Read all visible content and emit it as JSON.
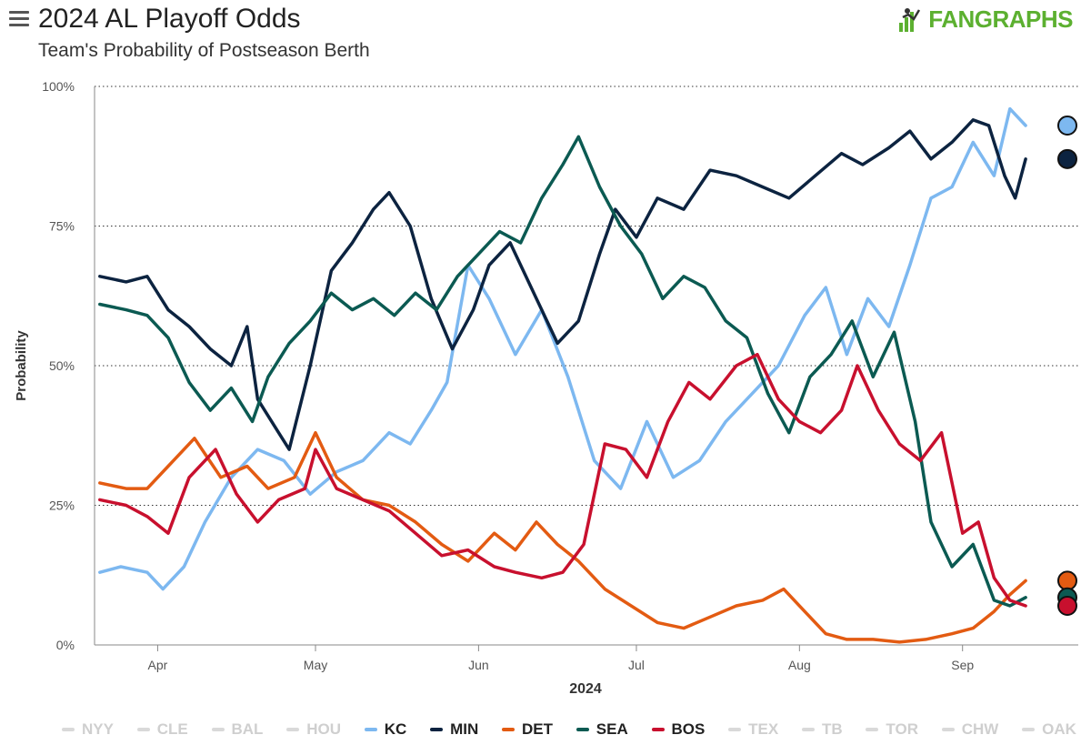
{
  "header": {
    "title": "2024 AL Playoff Odds",
    "subtitle": "Team's Probability of Postseason Berth",
    "logo_text": "FANGRAPHS",
    "logo_icon": "fangraphs-logo-icon",
    "menu_icon": "hamburger-menu-icon"
  },
  "colors": {
    "brand": "#5cb030",
    "KC": "#7db8f0",
    "MIN": "#0c2340",
    "DET": "#e35b12",
    "SEA": "#0b5a52",
    "BOS": "#c8102e",
    "inactive": "#d9d9d9"
  },
  "chart_data": {
    "type": "line",
    "title": "2024 AL Playoff Odds",
    "subtitle": "Team's Probability of Postseason Berth",
    "xlabel": "2024",
    "ylabel": "Probability",
    "x_range": [
      "2024-03-20",
      "2024-09-23"
    ],
    "ylim": [
      0,
      100
    ],
    "y_ticks": [
      {
        "value": 0,
        "label": "0%"
      },
      {
        "value": 25,
        "label": "25%"
      },
      {
        "value": 50,
        "label": "50%"
      },
      {
        "value": 75,
        "label": "75%"
      },
      {
        "value": 100,
        "label": "100%"
      }
    ],
    "x_ticks": [
      {
        "date": "2024-04-01",
        "label": "Apr"
      },
      {
        "date": "2024-05-01",
        "label": "May"
      },
      {
        "date": "2024-06-01",
        "label": "Jun"
      },
      {
        "date": "2024-07-01",
        "label": "Jul"
      },
      {
        "date": "2024-08-01",
        "label": "Aug"
      },
      {
        "date": "2024-09-01",
        "label": "Sep"
      }
    ],
    "grid": "horizontal-dotted",
    "legend_position": "bottom",
    "series": [
      {
        "name": "KC",
        "color": "#7db8f0",
        "points": [
          [
            "2024-03-21",
            13
          ],
          [
            "2024-03-25",
            14
          ],
          [
            "2024-03-30",
            13
          ],
          [
            "2024-04-02",
            10
          ],
          [
            "2024-04-06",
            14
          ],
          [
            "2024-04-10",
            22
          ],
          [
            "2024-04-15",
            30
          ],
          [
            "2024-04-20",
            35
          ],
          [
            "2024-04-25",
            33
          ],
          [
            "2024-04-30",
            27
          ],
          [
            "2024-05-05",
            31
          ],
          [
            "2024-05-10",
            33
          ],
          [
            "2024-05-15",
            38
          ],
          [
            "2024-05-19",
            36
          ],
          [
            "2024-05-23",
            42
          ],
          [
            "2024-05-26",
            47
          ],
          [
            "2024-05-30",
            68
          ],
          [
            "2024-06-03",
            62
          ],
          [
            "2024-06-08",
            52
          ],
          [
            "2024-06-13",
            60
          ],
          [
            "2024-06-18",
            48
          ],
          [
            "2024-06-23",
            33
          ],
          [
            "2024-06-28",
            28
          ],
          [
            "2024-07-03",
            40
          ],
          [
            "2024-07-08",
            30
          ],
          [
            "2024-07-13",
            33
          ],
          [
            "2024-07-18",
            40
          ],
          [
            "2024-07-23",
            45
          ],
          [
            "2024-07-28",
            50
          ],
          [
            "2024-08-02",
            59
          ],
          [
            "2024-08-06",
            64
          ],
          [
            "2024-08-10",
            52
          ],
          [
            "2024-08-14",
            62
          ],
          [
            "2024-08-18",
            57
          ],
          [
            "2024-08-22",
            68
          ],
          [
            "2024-08-26",
            80
          ],
          [
            "2024-08-30",
            82
          ],
          [
            "2024-09-03",
            90
          ],
          [
            "2024-09-07",
            84
          ],
          [
            "2024-09-10",
            96
          ],
          [
            "2024-09-13",
            93
          ]
        ]
      },
      {
        "name": "MIN",
        "color": "#0c2340",
        "points": [
          [
            "2024-03-21",
            66
          ],
          [
            "2024-03-26",
            65
          ],
          [
            "2024-03-30",
            66
          ],
          [
            "2024-04-03",
            60
          ],
          [
            "2024-04-07",
            57
          ],
          [
            "2024-04-11",
            53
          ],
          [
            "2024-04-15",
            50
          ],
          [
            "2024-04-18",
            57
          ],
          [
            "2024-04-20",
            44
          ],
          [
            "2024-04-24",
            38
          ],
          [
            "2024-04-26",
            35
          ],
          [
            "2024-04-30",
            50
          ],
          [
            "2024-05-04",
            67
          ],
          [
            "2024-05-08",
            72
          ],
          [
            "2024-05-12",
            78
          ],
          [
            "2024-05-15",
            81
          ],
          [
            "2024-05-19",
            75
          ],
          [
            "2024-05-23",
            62
          ],
          [
            "2024-05-27",
            53
          ],
          [
            "2024-05-31",
            60
          ],
          [
            "2024-06-03",
            68
          ],
          [
            "2024-06-07",
            72
          ],
          [
            "2024-06-12",
            62
          ],
          [
            "2024-06-16",
            54
          ],
          [
            "2024-06-20",
            58
          ],
          [
            "2024-06-24",
            70
          ],
          [
            "2024-06-27",
            78
          ],
          [
            "2024-07-01",
            73
          ],
          [
            "2024-07-05",
            80
          ],
          [
            "2024-07-10",
            78
          ],
          [
            "2024-07-15",
            85
          ],
          [
            "2024-07-20",
            84
          ],
          [
            "2024-07-25",
            82
          ],
          [
            "2024-07-30",
            80
          ],
          [
            "2024-08-04",
            84
          ],
          [
            "2024-08-09",
            88
          ],
          [
            "2024-08-13",
            86
          ],
          [
            "2024-08-18",
            89
          ],
          [
            "2024-08-22",
            92
          ],
          [
            "2024-08-26",
            87
          ],
          [
            "2024-08-30",
            90
          ],
          [
            "2024-09-03",
            94
          ],
          [
            "2024-09-06",
            93
          ],
          [
            "2024-09-09",
            84
          ],
          [
            "2024-09-11",
            80
          ],
          [
            "2024-09-13",
            87
          ]
        ]
      },
      {
        "name": "DET",
        "color": "#e35b12",
        "points": [
          [
            "2024-03-21",
            29
          ],
          [
            "2024-03-26",
            28
          ],
          [
            "2024-03-30",
            28
          ],
          [
            "2024-04-03",
            32
          ],
          [
            "2024-04-08",
            37
          ],
          [
            "2024-04-13",
            30
          ],
          [
            "2024-04-18",
            32
          ],
          [
            "2024-04-22",
            28
          ],
          [
            "2024-04-27",
            30
          ],
          [
            "2024-05-01",
            38
          ],
          [
            "2024-05-05",
            30
          ],
          [
            "2024-05-10",
            26
          ],
          [
            "2024-05-15",
            25
          ],
          [
            "2024-05-20",
            22
          ],
          [
            "2024-05-25",
            18
          ],
          [
            "2024-05-30",
            15
          ],
          [
            "2024-06-04",
            20
          ],
          [
            "2024-06-08",
            17
          ],
          [
            "2024-06-12",
            22
          ],
          [
            "2024-06-16",
            18
          ],
          [
            "2024-06-20",
            15
          ],
          [
            "2024-06-25",
            10
          ],
          [
            "2024-06-30",
            7
          ],
          [
            "2024-07-05",
            4
          ],
          [
            "2024-07-10",
            3
          ],
          [
            "2024-07-15",
            5
          ],
          [
            "2024-07-20",
            7
          ],
          [
            "2024-07-25",
            8
          ],
          [
            "2024-07-29",
            10
          ],
          [
            "2024-08-02",
            6
          ],
          [
            "2024-08-06",
            2
          ],
          [
            "2024-08-10",
            1
          ],
          [
            "2024-08-15",
            1
          ],
          [
            "2024-08-20",
            0.5
          ],
          [
            "2024-08-25",
            1
          ],
          [
            "2024-08-30",
            2
          ],
          [
            "2024-09-03",
            3
          ],
          [
            "2024-09-07",
            6
          ],
          [
            "2024-09-10",
            9
          ],
          [
            "2024-09-13",
            11.5
          ]
        ]
      },
      {
        "name": "SEA",
        "color": "#0b5a52",
        "points": [
          [
            "2024-03-21",
            61
          ],
          [
            "2024-03-26",
            60
          ],
          [
            "2024-03-30",
            59
          ],
          [
            "2024-04-03",
            55
          ],
          [
            "2024-04-07",
            47
          ],
          [
            "2024-04-11",
            42
          ],
          [
            "2024-04-15",
            46
          ],
          [
            "2024-04-19",
            40
          ],
          [
            "2024-04-22",
            48
          ],
          [
            "2024-04-26",
            54
          ],
          [
            "2024-04-30",
            58
          ],
          [
            "2024-05-04",
            63
          ],
          [
            "2024-05-08",
            60
          ],
          [
            "2024-05-12",
            62
          ],
          [
            "2024-05-16",
            59
          ],
          [
            "2024-05-20",
            63
          ],
          [
            "2024-05-24",
            60
          ],
          [
            "2024-05-28",
            66
          ],
          [
            "2024-06-01",
            70
          ],
          [
            "2024-06-05",
            74
          ],
          [
            "2024-06-09",
            72
          ],
          [
            "2024-06-13",
            80
          ],
          [
            "2024-06-17",
            86
          ],
          [
            "2024-06-20",
            91
          ],
          [
            "2024-06-24",
            82
          ],
          [
            "2024-06-28",
            75
          ],
          [
            "2024-07-02",
            70
          ],
          [
            "2024-07-06",
            62
          ],
          [
            "2024-07-10",
            66
          ],
          [
            "2024-07-14",
            64
          ],
          [
            "2024-07-18",
            58
          ],
          [
            "2024-07-22",
            55
          ],
          [
            "2024-07-26",
            45
          ],
          [
            "2024-07-30",
            38
          ],
          [
            "2024-08-03",
            48
          ],
          [
            "2024-08-07",
            52
          ],
          [
            "2024-08-11",
            58
          ],
          [
            "2024-08-15",
            48
          ],
          [
            "2024-08-19",
            56
          ],
          [
            "2024-08-23",
            40
          ],
          [
            "2024-08-26",
            22
          ],
          [
            "2024-08-30",
            14
          ],
          [
            "2024-09-03",
            18
          ],
          [
            "2024-09-07",
            8
          ],
          [
            "2024-09-10",
            7
          ],
          [
            "2024-09-13",
            8.5
          ]
        ]
      },
      {
        "name": "BOS",
        "color": "#c8102e",
        "points": [
          [
            "2024-03-21",
            26
          ],
          [
            "2024-03-26",
            25
          ],
          [
            "2024-03-30",
            23
          ],
          [
            "2024-04-03",
            20
          ],
          [
            "2024-04-07",
            30
          ],
          [
            "2024-04-12",
            35
          ],
          [
            "2024-04-16",
            27
          ],
          [
            "2024-04-20",
            22
          ],
          [
            "2024-04-24",
            26
          ],
          [
            "2024-04-29",
            28
          ],
          [
            "2024-05-01",
            35
          ],
          [
            "2024-05-05",
            28
          ],
          [
            "2024-05-10",
            26
          ],
          [
            "2024-05-15",
            24
          ],
          [
            "2024-05-20",
            20
          ],
          [
            "2024-05-25",
            16
          ],
          [
            "2024-05-30",
            17
          ],
          [
            "2024-06-04",
            14
          ],
          [
            "2024-06-08",
            13
          ],
          [
            "2024-06-13",
            12
          ],
          [
            "2024-06-17",
            13
          ],
          [
            "2024-06-21",
            18
          ],
          [
            "2024-06-25",
            36
          ],
          [
            "2024-06-29",
            35
          ],
          [
            "2024-07-03",
            30
          ],
          [
            "2024-07-07",
            40
          ],
          [
            "2024-07-11",
            47
          ],
          [
            "2024-07-15",
            44
          ],
          [
            "2024-07-20",
            50
          ],
          [
            "2024-07-24",
            52
          ],
          [
            "2024-07-28",
            44
          ],
          [
            "2024-08-01",
            40
          ],
          [
            "2024-08-05",
            38
          ],
          [
            "2024-08-09",
            42
          ],
          [
            "2024-08-12",
            50
          ],
          [
            "2024-08-16",
            42
          ],
          [
            "2024-08-20",
            36
          ],
          [
            "2024-08-24",
            33
          ],
          [
            "2024-08-28",
            38
          ],
          [
            "2024-09-01",
            20
          ],
          [
            "2024-09-04",
            22
          ],
          [
            "2024-09-07",
            12
          ],
          [
            "2024-09-10",
            8
          ],
          [
            "2024-09-13",
            7
          ]
        ]
      }
    ],
    "legend": [
      {
        "name": "NYY",
        "active": false
      },
      {
        "name": "CLE",
        "active": false
      },
      {
        "name": "BAL",
        "active": false
      },
      {
        "name": "HOU",
        "active": false
      },
      {
        "name": "KC",
        "active": true
      },
      {
        "name": "MIN",
        "active": true
      },
      {
        "name": "DET",
        "active": true
      },
      {
        "name": "SEA",
        "active": true
      },
      {
        "name": "BOS",
        "active": true
      },
      {
        "name": "TEX",
        "active": false
      },
      {
        "name": "TB",
        "active": false
      },
      {
        "name": "TOR",
        "active": false
      },
      {
        "name": "CHW",
        "active": false
      },
      {
        "name": "OAK",
        "active": false
      }
    ]
  }
}
